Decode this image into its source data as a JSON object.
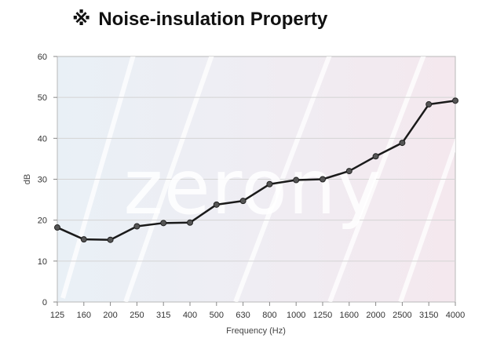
{
  "header": {
    "symbol": "※",
    "title": "Noise-insulation Property"
  },
  "watermark": "zerony",
  "colors": {
    "line": "#1a1a1a",
    "marker": "#555555",
    "grid": "#d4d4d4",
    "axis": "#888888"
  },
  "chart_data": {
    "type": "line",
    "title": "Noise-insulation Property",
    "xlabel": "Frequency (Hz)",
    "ylabel": "dB",
    "categories": [
      "125",
      "160",
      "200",
      "250",
      "315",
      "400",
      "500",
      "630",
      "800",
      "1000",
      "1250",
      "1600",
      "2000",
      "2500",
      "3150",
      "4000"
    ],
    "series": [
      {
        "name": "Noise insulation",
        "values": [
          18.2,
          15.3,
          15.2,
          18.5,
          19.3,
          19.4,
          23.8,
          24.7,
          28.8,
          29.8,
          30.0,
          32.0,
          35.6,
          38.9,
          48.3,
          49.2
        ]
      }
    ],
    "ylim": [
      0,
      60
    ],
    "yticks": [
      0,
      10,
      20,
      30,
      40,
      50,
      60
    ],
    "grid": true
  }
}
